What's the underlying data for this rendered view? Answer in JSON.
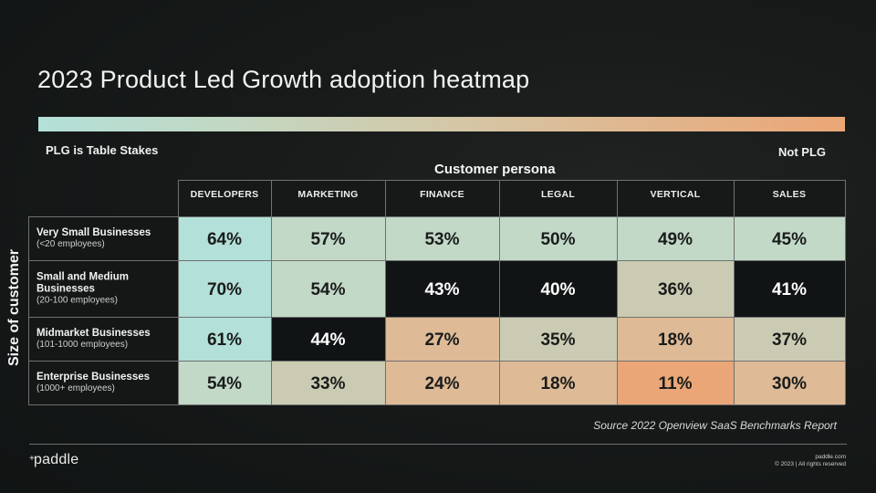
{
  "slide": {
    "title": "2023 Product Led Growth adoption heatmap",
    "scale": {
      "left_label": "PLG is Table Stakes",
      "right_label": "Not PLG",
      "gradient_colors": [
        "#B3E0D8",
        "#C3D7C2",
        "#D3C8A8",
        "#E0B68E",
        "#EBA676"
      ]
    },
    "source": "Source 2022 Openview SaaS Benchmarks Report",
    "footer": {
      "logo_text": "paddle",
      "website": "paddle.com",
      "copyright": "© 2023  |  All rights reserved"
    }
  },
  "chart_data": {
    "type": "heatmap",
    "title": "2023 Product Led Growth adoption heatmap",
    "xlabel": "Customer persona",
    "ylabel": "Size of customer",
    "columns": [
      "DEVELOPERS",
      "MARKETING",
      "FINANCE",
      "LEGAL",
      "VERTICAL",
      "SALES"
    ],
    "rows": [
      {
        "label": "Very Small Businesses",
        "sublabel": "(<20 employees)"
      },
      {
        "label": "Small and Medium Businesses",
        "sublabel": "(20-100 employees)"
      },
      {
        "label": "Midmarket Businesses",
        "sublabel": "(101-1000 employees)"
      },
      {
        "label": "Enterprise Businesses",
        "sublabel": "(1000+ employees)"
      }
    ],
    "values": [
      [
        64,
        57,
        53,
        50,
        49,
        45
      ],
      [
        70,
        54,
        43,
        40,
        36,
        41
      ],
      [
        61,
        44,
        27,
        35,
        18,
        37
      ],
      [
        54,
        33,
        24,
        18,
        11,
        30
      ]
    ],
    "unit": "%",
    "cell_colors": [
      [
        "#B3E0D8",
        "#C2D9C8",
        "#C2D9C8",
        "#C2D9C8",
        "#C2D9C8",
        "#C2D9C8"
      ],
      [
        "#B3E0D8",
        "#C2D9C8",
        "#111415",
        "#111415",
        "#CBCBB3",
        "#111415"
      ],
      [
        "#B3E0D8",
        "#111415",
        "#DEBA96",
        "#CBCBB3",
        "#DEBA96",
        "#CBCBB3"
      ],
      [
        "#C2D9C8",
        "#CBCBB3",
        "#DEBA96",
        "#DEBA96",
        "#EAA677",
        "#DEBA96"
      ]
    ],
    "scale_labels": {
      "low_end": "PLG is Table Stakes",
      "high_end": "Not PLG"
    },
    "legend": "top"
  }
}
